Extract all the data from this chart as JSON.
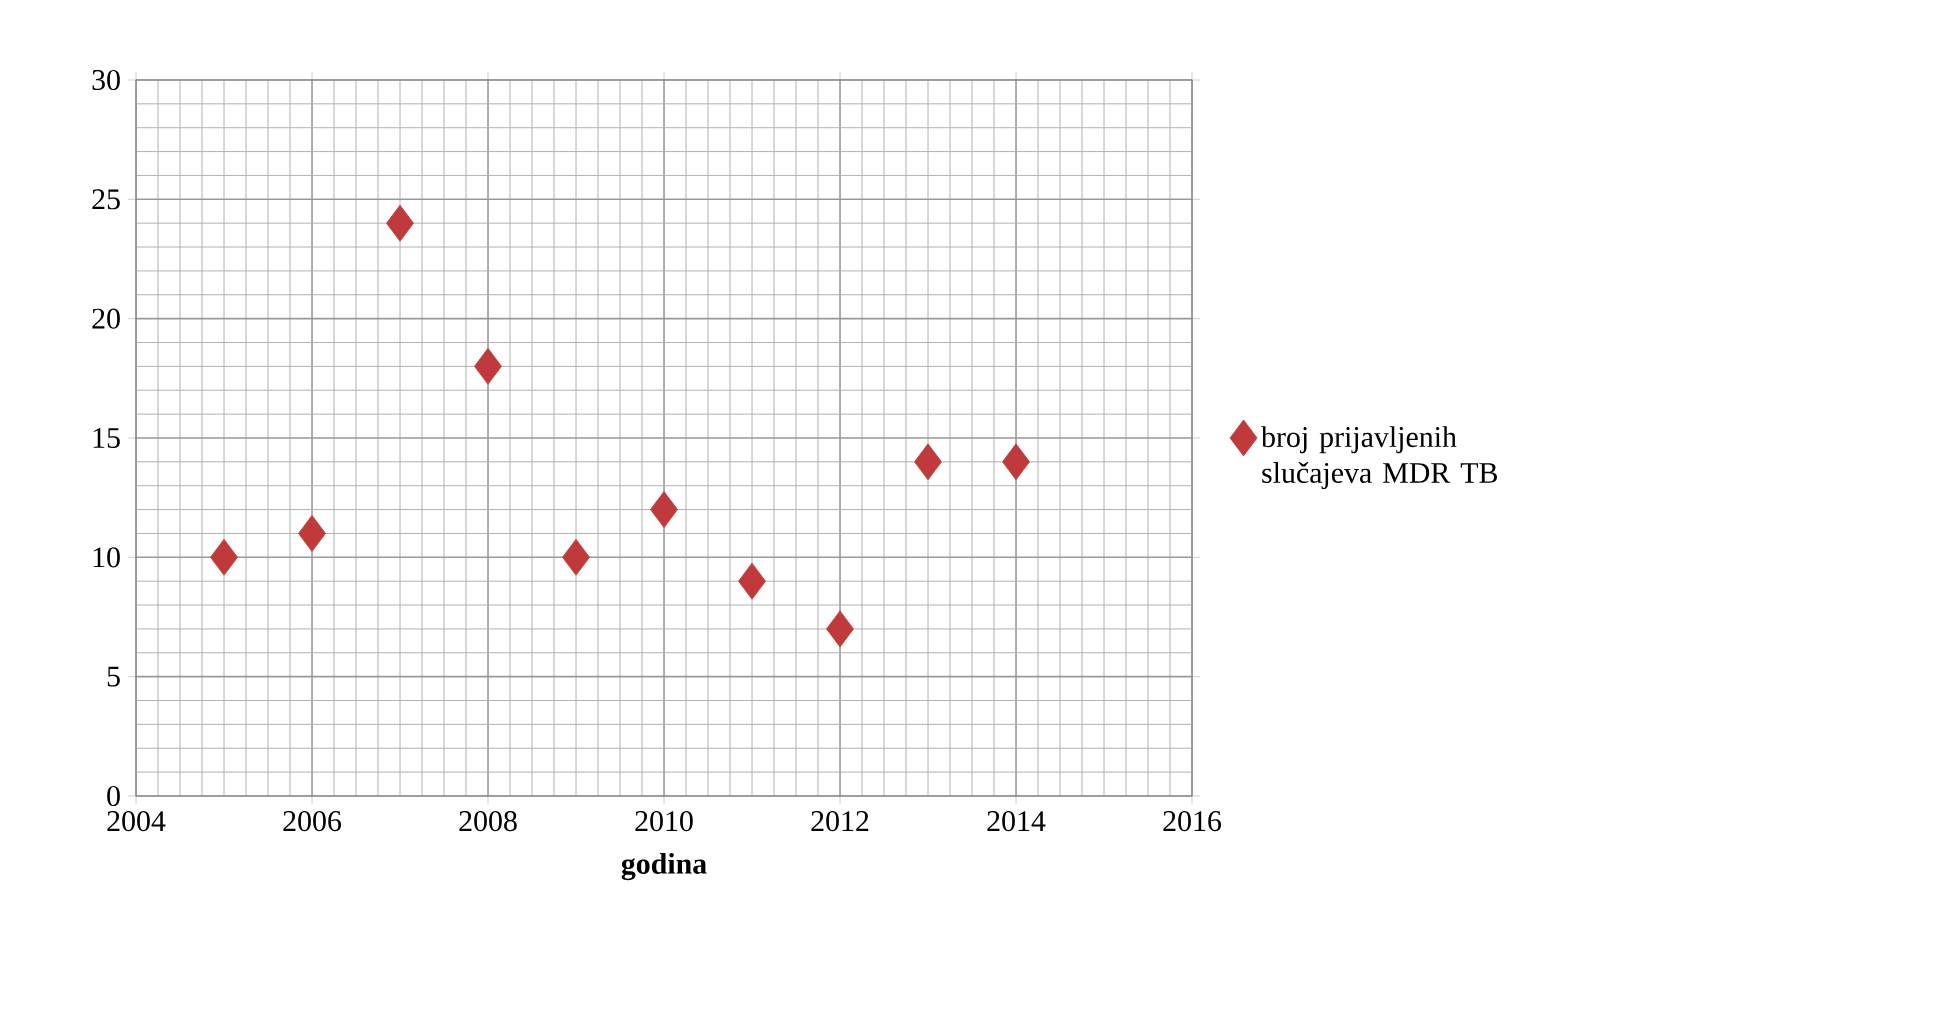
{
  "chart_data": {
    "type": "scatter",
    "xlabel": "godina",
    "x": [
      2005,
      2006,
      2007,
      2008,
      2009,
      2010,
      2011,
      2012,
      2013,
      2014
    ],
    "series": [
      {
        "name": "broj prijavljenih slučajeva MDR TB",
        "color": "#c0393b",
        "values": [
          10,
          11,
          24,
          18,
          10,
          12,
          9,
          7,
          14,
          14
        ]
      }
    ],
    "xlim": [
      2004,
      2016
    ],
    "xticks": [
      2004,
      2006,
      2008,
      2010,
      2012,
      2014,
      2016
    ],
    "ylim": [
      0,
      30
    ],
    "yticks": [
      0,
      5,
      10,
      15,
      20,
      25,
      30
    ],
    "grid": true,
    "legend": "right",
    "marker": "diamond"
  }
}
